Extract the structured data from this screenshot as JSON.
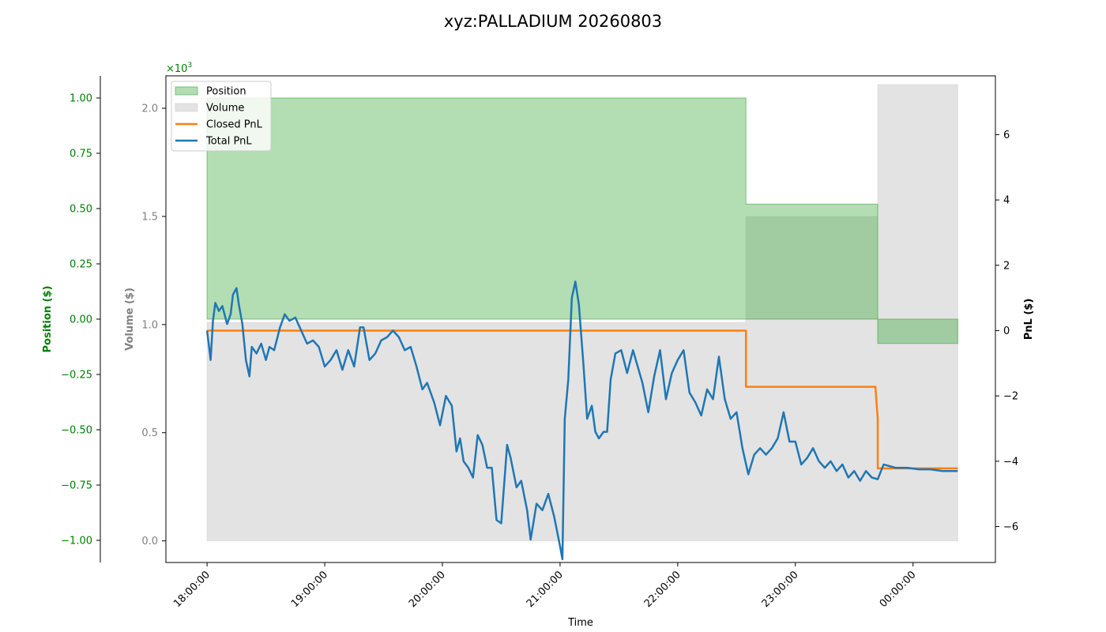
{
  "chart_data": {
    "type": "line",
    "title": "xyz:PALLADIUM 20260803",
    "xlabel": "Time",
    "x_tick_labels": [
      "18:00:00",
      "19:00:00",
      "20:00:00",
      "21:00:00",
      "22:00:00",
      "23:00:00",
      "00:00:00"
    ],
    "x_range_hours": [
      17.65,
      24.7
    ],
    "axes": {
      "position": {
        "label": "Position ($)",
        "color": "#008000",
        "ylim": [
          -1.1,
          1.1
        ],
        "ticks": [
          -1.0,
          -0.75,
          -0.5,
          -0.25,
          0.0,
          0.25,
          0.5,
          0.75,
          1.0
        ],
        "tick_labels": [
          "−1.00",
          "−0.75",
          "−0.50",
          "−0.25",
          "0.00",
          "0.25",
          "0.50",
          "0.75",
          "1.00"
        ],
        "scale_label": "×10",
        "scale_exp": "3"
      },
      "volume": {
        "label": "Volume ($)",
        "color": "#808080",
        "ylim": [
          -0.1,
          2.15
        ],
        "ticks": [
          0.0,
          0.5,
          1.0,
          1.5,
          2.0
        ],
        "tick_labels": [
          "0.0",
          "0.5",
          "1.0",
          "1.5",
          "2.0"
        ]
      },
      "pnl": {
        "label": "PnL ($)",
        "color": "#000000",
        "ylim": [
          -7.1,
          7.8
        ],
        "ticks": [
          -6,
          -4,
          -2,
          0,
          2,
          4,
          6
        ],
        "tick_labels": [
          "−6",
          "−4",
          "−2",
          "0",
          "2",
          "4",
          "6"
        ]
      }
    },
    "legend": {
      "placement": "top-left",
      "entries": [
        "Position",
        "Volume",
        "Closed PnL",
        "Total PnL"
      ]
    },
    "series": [
      {
        "name": "Position",
        "kind": "step-area",
        "axis": "position",
        "color": "#2ca02c",
        "points": [
          [
            18.0,
            1.0
          ],
          [
            22.58,
            1.0
          ],
          [
            22.58,
            0.52
          ],
          [
            23.7,
            0.52
          ],
          [
            23.7,
            -0.11
          ],
          [
            24.38,
            -0.11
          ]
        ]
      },
      {
        "name": "Volume",
        "kind": "step-area",
        "axis": "volume",
        "color": "#c8c8c8",
        "points": [
          [
            18.0,
            1.01
          ],
          [
            22.58,
            1.01
          ],
          [
            22.58,
            1.5
          ],
          [
            23.7,
            1.5
          ],
          [
            23.7,
            2.11
          ],
          [
            24.38,
            2.11
          ]
        ]
      },
      {
        "name": "Closed PnL",
        "kind": "line",
        "axis": "pnl",
        "color": "#ff7f0e",
        "points": [
          [
            18.0,
            0.0
          ],
          [
            22.58,
            0.0
          ],
          [
            22.58,
            -1.72
          ],
          [
            23.68,
            -1.72
          ],
          [
            23.7,
            -2.7
          ],
          [
            23.7,
            -4.22
          ],
          [
            24.38,
            -4.22
          ]
        ]
      },
      {
        "name": "Total PnL",
        "kind": "line",
        "axis": "pnl",
        "color": "#1f77b4",
        "points": [
          [
            18.0,
            0.0
          ],
          [
            18.03,
            -0.9
          ],
          [
            18.05,
            0.3
          ],
          [
            18.07,
            0.85
          ],
          [
            18.1,
            0.6
          ],
          [
            18.13,
            0.75
          ],
          [
            18.17,
            0.2
          ],
          [
            18.2,
            0.5
          ],
          [
            18.22,
            1.1
          ],
          [
            18.25,
            1.3
          ],
          [
            18.27,
            0.8
          ],
          [
            18.3,
            0.2
          ],
          [
            18.33,
            -0.9
          ],
          [
            18.36,
            -1.4
          ],
          [
            18.38,
            -0.5
          ],
          [
            18.42,
            -0.7
          ],
          [
            18.46,
            -0.4
          ],
          [
            18.5,
            -0.9
          ],
          [
            18.53,
            -0.5
          ],
          [
            18.57,
            -0.6
          ],
          [
            18.62,
            0.1
          ],
          [
            18.66,
            0.5
          ],
          [
            18.7,
            0.3
          ],
          [
            18.75,
            0.4
          ],
          [
            18.8,
            0.0
          ],
          [
            18.85,
            -0.4
          ],
          [
            18.9,
            -0.3
          ],
          [
            18.95,
            -0.5
          ],
          [
            19.0,
            -1.1
          ],
          [
            19.05,
            -0.9
          ],
          [
            19.1,
            -0.6
          ],
          [
            19.15,
            -1.2
          ],
          [
            19.2,
            -0.6
          ],
          [
            19.25,
            -1.1
          ],
          [
            19.3,
            0.1
          ],
          [
            19.33,
            0.1
          ],
          [
            19.38,
            -0.9
          ],
          [
            19.43,
            -0.7
          ],
          [
            19.48,
            -0.3
          ],
          [
            19.53,
            -0.2
          ],
          [
            19.58,
            0.0
          ],
          [
            19.63,
            -0.2
          ],
          [
            19.68,
            -0.6
          ],
          [
            19.73,
            -0.5
          ],
          [
            19.78,
            -1.1
          ],
          [
            19.83,
            -1.8
          ],
          [
            19.87,
            -1.6
          ],
          [
            19.93,
            -2.2
          ],
          [
            19.98,
            -2.9
          ],
          [
            20.03,
            -2.0
          ],
          [
            20.08,
            -2.3
          ],
          [
            20.12,
            -3.7
          ],
          [
            20.15,
            -3.3
          ],
          [
            20.18,
            -4.0
          ],
          [
            20.22,
            -4.2
          ],
          [
            20.26,
            -4.5
          ],
          [
            20.3,
            -3.2
          ],
          [
            20.34,
            -3.5
          ],
          [
            20.38,
            -4.2
          ],
          [
            20.42,
            -4.2
          ],
          [
            20.46,
            -5.8
          ],
          [
            20.5,
            -5.9
          ],
          [
            20.55,
            -3.5
          ],
          [
            20.58,
            -3.9
          ],
          [
            20.63,
            -4.8
          ],
          [
            20.67,
            -4.6
          ],
          [
            20.72,
            -5.5
          ],
          [
            20.75,
            -6.4
          ],
          [
            20.8,
            -5.3
          ],
          [
            20.85,
            -5.5
          ],
          [
            20.9,
            -5.0
          ],
          [
            20.95,
            -5.7
          ],
          [
            21.0,
            -6.6
          ],
          [
            21.02,
            -7.0
          ],
          [
            21.04,
            -2.7
          ],
          [
            21.07,
            -1.5
          ],
          [
            21.1,
            1.0
          ],
          [
            21.13,
            1.5
          ],
          [
            21.16,
            0.8
          ],
          [
            21.2,
            -1.1
          ],
          [
            21.23,
            -2.7
          ],
          [
            21.27,
            -2.3
          ],
          [
            21.3,
            -3.1
          ],
          [
            21.33,
            -3.3
          ],
          [
            21.37,
            -3.1
          ],
          [
            21.4,
            -3.1
          ],
          [
            21.43,
            -1.5
          ],
          [
            21.47,
            -0.7
          ],
          [
            21.52,
            -0.6
          ],
          [
            21.57,
            -1.3
          ],
          [
            21.62,
            -0.6
          ],
          [
            21.66,
            -1.1
          ],
          [
            21.7,
            -1.6
          ],
          [
            21.75,
            -2.5
          ],
          [
            21.8,
            -1.4
          ],
          [
            21.85,
            -0.6
          ],
          [
            21.9,
            -2.1
          ],
          [
            21.95,
            -1.3
          ],
          [
            22.0,
            -0.9
          ],
          [
            22.05,
            -0.6
          ],
          [
            22.1,
            -1.9
          ],
          [
            22.15,
            -2.2
          ],
          [
            22.2,
            -2.6
          ],
          [
            22.25,
            -1.8
          ],
          [
            22.3,
            -2.1
          ],
          [
            22.35,
            -0.8
          ],
          [
            22.4,
            -2.1
          ],
          [
            22.45,
            -2.7
          ],
          [
            22.5,
            -2.5
          ],
          [
            22.55,
            -3.6
          ],
          [
            22.6,
            -4.4
          ],
          [
            22.65,
            -3.8
          ],
          [
            22.7,
            -3.6
          ],
          [
            22.75,
            -3.8
          ],
          [
            22.8,
            -3.6
          ],
          [
            22.85,
            -3.3
          ],
          [
            22.9,
            -2.5
          ],
          [
            22.95,
            -3.4
          ],
          [
            23.0,
            -3.4
          ],
          [
            23.05,
            -4.1
          ],
          [
            23.1,
            -3.9
          ],
          [
            23.15,
            -3.6
          ],
          [
            23.2,
            -4.0
          ],
          [
            23.25,
            -4.2
          ],
          [
            23.3,
            -4.0
          ],
          [
            23.35,
            -4.3
          ],
          [
            23.4,
            -4.1
          ],
          [
            23.45,
            -4.5
          ],
          [
            23.5,
            -4.3
          ],
          [
            23.55,
            -4.6
          ],
          [
            23.6,
            -4.3
          ],
          [
            23.65,
            -4.5
          ],
          [
            23.7,
            -4.55
          ],
          [
            23.75,
            -4.1
          ],
          [
            23.85,
            -4.2
          ],
          [
            23.95,
            -4.2
          ],
          [
            24.05,
            -4.25
          ],
          [
            24.15,
            -4.25
          ],
          [
            24.25,
            -4.3
          ],
          [
            24.38,
            -4.3
          ]
        ]
      }
    ]
  }
}
